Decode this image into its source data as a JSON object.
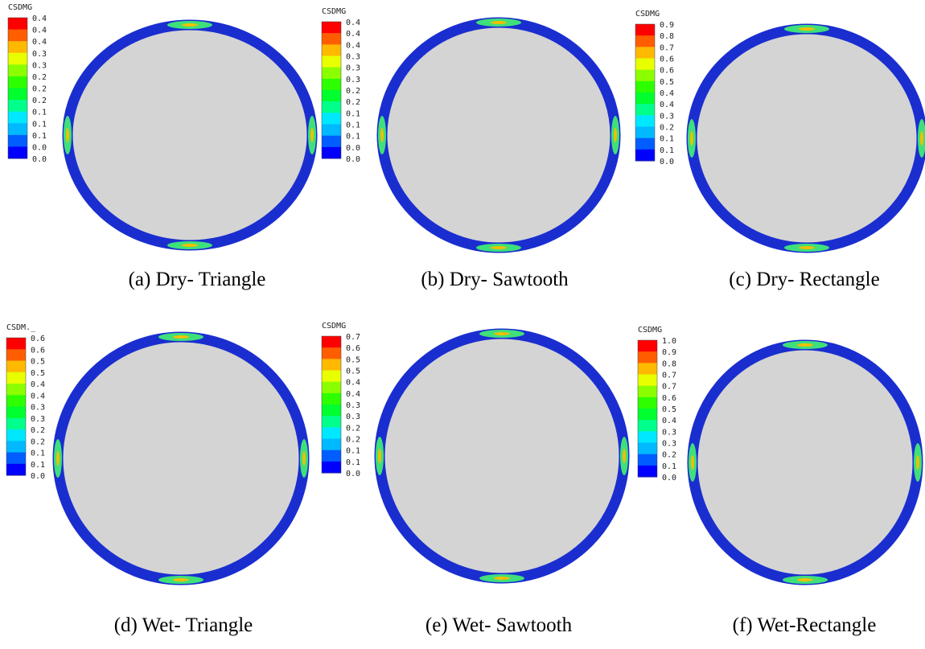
{
  "panels": [
    {
      "legend_title": "CSDMG",
      "legend_labels": [
        "0.4",
        "0.4",
        "0.4",
        "0.3",
        "0.3",
        "0.2",
        "0.2",
        "0.2",
        "0.1",
        "0.1",
        "0.1",
        "0.0",
        "0.0"
      ],
      "caption": "(a) Dry- Triangle"
    },
    {
      "legend_title": "CSDMG",
      "legend_labels": [
        "0.4",
        "0.4",
        "0.4",
        "0.3",
        "0.3",
        "0.3",
        "0.2",
        "0.2",
        "0.1",
        "0.1",
        "0.1",
        "0.0",
        "0.0"
      ],
      "caption": "(b) Dry- Sawtooth"
    },
    {
      "legend_title": "CSDMG",
      "legend_labels": [
        "0.9",
        "0.8",
        "0.7",
        "0.6",
        "0.6",
        "0.5",
        "0.4",
        "0.4",
        "0.3",
        "0.2",
        "0.1",
        "0.1",
        "0.0"
      ],
      "caption": "(c) Dry- Rectangle"
    },
    {
      "legend_title": "CSDM._",
      "legend_labels": [
        "0.6",
        "0.6",
        "0.5",
        "0.5",
        "0.4",
        "0.4",
        "0.3",
        "0.3",
        "0.2",
        "0.2",
        "0.1",
        "0.1",
        "0.0"
      ],
      "caption": "(d)  Wet- Triangle"
    },
    {
      "legend_title": "CSDMG",
      "legend_labels": [
        "0.7",
        "0.6",
        "0.5",
        "0.5",
        "0.4",
        "0.4",
        "0.3",
        "0.3",
        "0.2",
        "0.2",
        "0.1",
        "0.1",
        "0.0"
      ],
      "caption": "(e)  Wet- Sawtooth"
    },
    {
      "legend_title": "CSDMG",
      "legend_labels": [
        "1.0",
        "0.9",
        "0.8",
        "0.7",
        "0.7",
        "0.6",
        "0.5",
        "0.4",
        "0.3",
        "0.3",
        "0.2",
        "0.1",
        "0.0"
      ],
      "caption": "(f) Wet-Rectangle"
    }
  ]
}
